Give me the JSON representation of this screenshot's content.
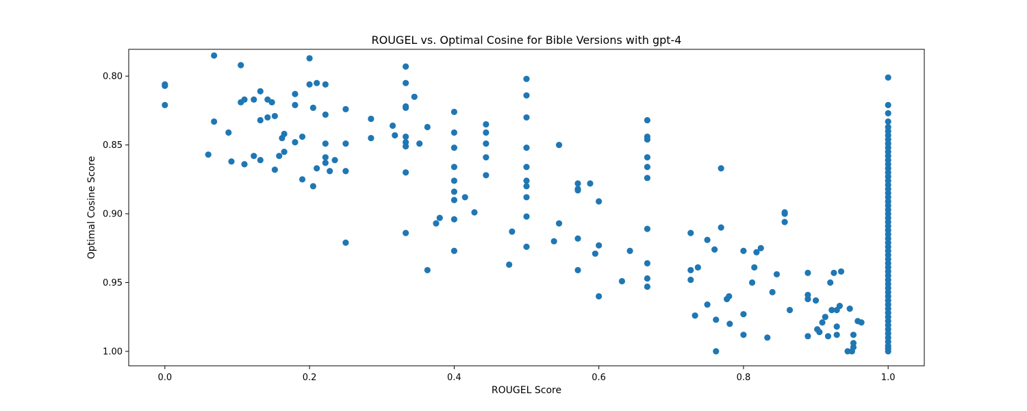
{
  "chart_data": {
    "type": "scatter",
    "title": "ROUGEL vs. Optimal Cosine for Bible Versions with gpt-4",
    "xlabel": "ROUGEL Score",
    "ylabel": "Optimal Cosine Score",
    "xlim": [
      -0.05,
      1.05
    ],
    "ylim": [
      0.7805,
      1.0105
    ],
    "y_inverted": true,
    "x_ticks": [
      {
        "value": 0.0,
        "label": "0.0"
      },
      {
        "value": 0.2,
        "label": "0.2"
      },
      {
        "value": 0.4,
        "label": "0.4"
      },
      {
        "value": 0.6,
        "label": "0.6"
      },
      {
        "value": 0.8,
        "label": "0.8"
      },
      {
        "value": 1.0,
        "label": "1.0"
      }
    ],
    "y_ticks": [
      {
        "value": 0.8,
        "label": "0.80"
      },
      {
        "value": 0.85,
        "label": "0.85"
      },
      {
        "value": 0.9,
        "label": "0.90"
      },
      {
        "value": 0.95,
        "label": "0.95"
      },
      {
        "value": 1.0,
        "label": "1.00"
      }
    ],
    "grid": false,
    "marker_color": "#1f77b4",
    "series": [
      {
        "points": [
          [
            0.0,
            0.806
          ],
          [
            0.0,
            0.807
          ],
          [
            0.0,
            0.821
          ],
          [
            0.06,
            0.857
          ],
          [
            0.068,
            0.785
          ],
          [
            0.068,
            0.833
          ],
          [
            0.088,
            0.841
          ],
          [
            0.092,
            0.862
          ],
          [
            0.105,
            0.792
          ],
          [
            0.105,
            0.819
          ],
          [
            0.11,
            0.817
          ],
          [
            0.11,
            0.864
          ],
          [
            0.123,
            0.817
          ],
          [
            0.123,
            0.858
          ],
          [
            0.132,
            0.811
          ],
          [
            0.132,
            0.832
          ],
          [
            0.132,
            0.861
          ],
          [
            0.142,
            0.817
          ],
          [
            0.142,
            0.83
          ],
          [
            0.148,
            0.819
          ],
          [
            0.152,
            0.829
          ],
          [
            0.152,
            0.868
          ],
          [
            0.158,
            0.858
          ],
          [
            0.162,
            0.845
          ],
          [
            0.165,
            0.842
          ],
          [
            0.165,
            0.855
          ],
          [
            0.18,
            0.813
          ],
          [
            0.18,
            0.821
          ],
          [
            0.18,
            0.848
          ],
          [
            0.19,
            0.844
          ],
          [
            0.19,
            0.875
          ],
          [
            0.2,
            0.787
          ],
          [
            0.2,
            0.806
          ],
          [
            0.205,
            0.823
          ],
          [
            0.205,
            0.88
          ],
          [
            0.21,
            0.805
          ],
          [
            0.21,
            0.867
          ],
          [
            0.222,
            0.806
          ],
          [
            0.222,
            0.828
          ],
          [
            0.222,
            0.849
          ],
          [
            0.222,
            0.859
          ],
          [
            0.222,
            0.863
          ],
          [
            0.228,
            0.869
          ],
          [
            0.235,
            0.861
          ],
          [
            0.25,
            0.824
          ],
          [
            0.25,
            0.849
          ],
          [
            0.25,
            0.869
          ],
          [
            0.25,
            0.921
          ],
          [
            0.285,
            0.831
          ],
          [
            0.285,
            0.845
          ],
          [
            0.315,
            0.836
          ],
          [
            0.318,
            0.843
          ],
          [
            0.333,
            0.793
          ],
          [
            0.333,
            0.805
          ],
          [
            0.333,
            0.822
          ],
          [
            0.333,
            0.823
          ],
          [
            0.333,
            0.844
          ],
          [
            0.333,
            0.848
          ],
          [
            0.333,
            0.851
          ],
          [
            0.333,
            0.87
          ],
          [
            0.333,
            0.914
          ],
          [
            0.345,
            0.815
          ],
          [
            0.352,
            0.849
          ],
          [
            0.363,
            0.837
          ],
          [
            0.363,
            0.941
          ],
          [
            0.375,
            0.907
          ],
          [
            0.38,
            0.903
          ],
          [
            0.4,
            0.826
          ],
          [
            0.4,
            0.841
          ],
          [
            0.4,
            0.852
          ],
          [
            0.4,
            0.866
          ],
          [
            0.4,
            0.876
          ],
          [
            0.4,
            0.884
          ],
          [
            0.4,
            0.89
          ],
          [
            0.4,
            0.904
          ],
          [
            0.4,
            0.927
          ],
          [
            0.415,
            0.888
          ],
          [
            0.428,
            0.899
          ],
          [
            0.444,
            0.835
          ],
          [
            0.444,
            0.841
          ],
          [
            0.444,
            0.849
          ],
          [
            0.444,
            0.859
          ],
          [
            0.444,
            0.872
          ],
          [
            0.476,
            0.937
          ],
          [
            0.48,
            0.913
          ],
          [
            0.5,
            0.802
          ],
          [
            0.5,
            0.814
          ],
          [
            0.5,
            0.83
          ],
          [
            0.5,
            0.852
          ],
          [
            0.5,
            0.866
          ],
          [
            0.5,
            0.876
          ],
          [
            0.5,
            0.88
          ],
          [
            0.5,
            0.888
          ],
          [
            0.5,
            0.902
          ],
          [
            0.5,
            0.924
          ],
          [
            0.538,
            0.92
          ],
          [
            0.545,
            0.85
          ],
          [
            0.545,
            0.907
          ],
          [
            0.571,
            0.878
          ],
          [
            0.571,
            0.882
          ],
          [
            0.571,
            0.883
          ],
          [
            0.571,
            0.918
          ],
          [
            0.571,
            0.941
          ],
          [
            0.588,
            0.878
          ],
          [
            0.595,
            0.929
          ],
          [
            0.6,
            0.891
          ],
          [
            0.6,
            0.923
          ],
          [
            0.6,
            0.96
          ],
          [
            0.632,
            0.949
          ],
          [
            0.643,
            0.927
          ],
          [
            0.667,
            0.832
          ],
          [
            0.667,
            0.844
          ],
          [
            0.667,
            0.846
          ],
          [
            0.667,
            0.859
          ],
          [
            0.667,
            0.866
          ],
          [
            0.667,
            0.874
          ],
          [
            0.667,
            0.911
          ],
          [
            0.667,
            0.936
          ],
          [
            0.667,
            0.947
          ],
          [
            0.667,
            0.953
          ],
          [
            0.727,
            0.914
          ],
          [
            0.727,
            0.941
          ],
          [
            0.727,
            0.948
          ],
          [
            0.733,
            0.974
          ],
          [
            0.737,
            0.939
          ],
          [
            0.75,
            0.919
          ],
          [
            0.75,
            0.966
          ],
          [
            0.76,
            0.926
          ],
          [
            0.762,
            0.977
          ],
          [
            0.762,
            1.0
          ],
          [
            0.769,
            0.867
          ],
          [
            0.769,
            0.91
          ],
          [
            0.777,
            0.962
          ],
          [
            0.78,
            0.96
          ],
          [
            0.781,
            0.98
          ],
          [
            0.8,
            0.927
          ],
          [
            0.8,
            0.973
          ],
          [
            0.8,
            0.988
          ],
          [
            0.812,
            0.95
          ],
          [
            0.815,
            0.939
          ],
          [
            0.818,
            0.928
          ],
          [
            0.824,
            0.925
          ],
          [
            0.833,
            0.99
          ],
          [
            0.84,
            0.957
          ],
          [
            0.846,
            0.944
          ],
          [
            0.857,
            0.899
          ],
          [
            0.857,
            0.9
          ],
          [
            0.857,
            0.906
          ],
          [
            0.864,
            0.97
          ],
          [
            0.889,
            0.943
          ],
          [
            0.889,
            0.959
          ],
          [
            0.889,
            0.962
          ],
          [
            0.889,
            0.989
          ],
          [
            0.9,
            0.963
          ],
          [
            0.902,
            0.984
          ],
          [
            0.905,
            0.986
          ],
          [
            0.909,
            0.979
          ],
          [
            0.913,
            0.975
          ],
          [
            0.917,
            0.989
          ],
          [
            0.92,
            0.95
          ],
          [
            0.922,
            0.97
          ],
          [
            0.925,
            0.943
          ],
          [
            0.929,
            0.97
          ],
          [
            0.929,
            0.982
          ],
          [
            0.929,
            0.988
          ],
          [
            0.933,
            0.967
          ],
          [
            0.935,
            0.942
          ],
          [
            0.944,
            1.0
          ],
          [
            0.947,
            0.969
          ],
          [
            0.95,
            1.0
          ],
          [
            0.952,
            0.988
          ],
          [
            0.952,
            0.994
          ],
          [
            0.952,
            0.997
          ],
          [
            0.958,
            0.978
          ],
          [
            0.963,
            0.979
          ],
          [
            1.0,
            0.801
          ],
          [
            1.0,
            0.821
          ],
          [
            1.0,
            0.827
          ],
          [
            1.0,
            0.833
          ],
          [
            1.0,
            0.837
          ],
          [
            1.0,
            0.84
          ],
          [
            1.0,
            0.843
          ],
          [
            1.0,
            0.846
          ],
          [
            1.0,
            0.849
          ],
          [
            1.0,
            0.852
          ],
          [
            1.0,
            0.855
          ],
          [
            1.0,
            0.858
          ],
          [
            1.0,
            0.861
          ],
          [
            1.0,
            0.864
          ],
          [
            1.0,
            0.867
          ],
          [
            1.0,
            0.87
          ],
          [
            1.0,
            0.873
          ],
          [
            1.0,
            0.876
          ],
          [
            1.0,
            0.879
          ],
          [
            1.0,
            0.882
          ],
          [
            1.0,
            0.885
          ],
          [
            1.0,
            0.888
          ],
          [
            1.0,
            0.891
          ],
          [
            1.0,
            0.894
          ],
          [
            1.0,
            0.897
          ],
          [
            1.0,
            0.9
          ],
          [
            1.0,
            0.903
          ],
          [
            1.0,
            0.906
          ],
          [
            1.0,
            0.909
          ],
          [
            1.0,
            0.912
          ],
          [
            1.0,
            0.915
          ],
          [
            1.0,
            0.918
          ],
          [
            1.0,
            0.921
          ],
          [
            1.0,
            0.924
          ],
          [
            1.0,
            0.927
          ],
          [
            1.0,
            0.93
          ],
          [
            1.0,
            0.933
          ],
          [
            1.0,
            0.936
          ],
          [
            1.0,
            0.939
          ],
          [
            1.0,
            0.942
          ],
          [
            1.0,
            0.945
          ],
          [
            1.0,
            0.948
          ],
          [
            1.0,
            0.951
          ],
          [
            1.0,
            0.954
          ],
          [
            1.0,
            0.957
          ],
          [
            1.0,
            0.96
          ],
          [
            1.0,
            0.963
          ],
          [
            1.0,
            0.966
          ],
          [
            1.0,
            0.969
          ],
          [
            1.0,
            0.972
          ],
          [
            1.0,
            0.975
          ],
          [
            1.0,
            0.978
          ],
          [
            1.0,
            0.981
          ],
          [
            1.0,
            0.984
          ],
          [
            1.0,
            0.987
          ],
          [
            1.0,
            0.99
          ],
          [
            1.0,
            0.993
          ],
          [
            1.0,
            0.996
          ],
          [
            1.0,
            0.998
          ],
          [
            1.0,
            1.0
          ]
        ]
      }
    ]
  }
}
